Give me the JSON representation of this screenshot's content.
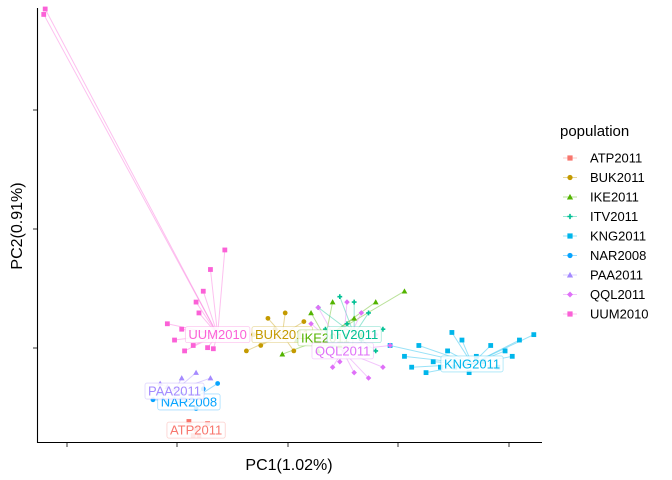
{
  "chart_data": {
    "type": "scatter",
    "title": "",
    "xlabel": "PC1(1.02%)",
    "ylabel": "PC2(0.91%)",
    "xlim": [
      -0.4,
      3.1
    ],
    "ylim": [
      -0.38,
      3.6
    ],
    "grid": false,
    "legend": {
      "title": "population",
      "placement": "right"
    },
    "series": [
      {
        "name": "ATP2011",
        "color": "#F8766D",
        "shape": "square",
        "centroid": [
          0.7,
          -0.28
        ],
        "points": [
          [
            0.68,
            -0.33
          ],
          [
            0.72,
            -0.33
          ],
          [
            0.65,
            -0.2
          ],
          [
            0.78,
            -0.22
          ],
          [
            0.7,
            -0.27
          ]
        ]
      },
      {
        "name": "BUK2011",
        "color": "#C49A00",
        "shape": "circle",
        "centroid": [
          1.3,
          0.6
        ],
        "points": [
          [
            1.05,
            0.45
          ],
          [
            1.1,
            0.6
          ],
          [
            1.2,
            0.75
          ],
          [
            1.32,
            0.8
          ],
          [
            1.45,
            0.72
          ],
          [
            1.5,
            0.55
          ],
          [
            1.38,
            0.45
          ],
          [
            1.25,
            0.65
          ],
          [
            1.15,
            0.5
          ],
          [
            1.42,
            0.62
          ]
        ]
      },
      {
        "name": "IKE2011",
        "color": "#53B400",
        "shape": "triangle",
        "centroid": [
          1.6,
          0.57
        ],
        "points": [
          [
            1.3,
            0.42
          ],
          [
            1.5,
            0.8
          ],
          [
            1.65,
            0.9
          ],
          [
            1.8,
            0.75
          ],
          [
            1.95,
            0.9
          ],
          [
            2.15,
            1.0
          ],
          [
            1.7,
            0.5
          ],
          [
            1.55,
            0.45
          ],
          [
            1.85,
            0.6
          ],
          [
            1.4,
            0.55
          ]
        ]
      },
      {
        "name": "ITV2011",
        "color": "#00C094",
        "shape": "plus",
        "centroid": [
          1.8,
          0.6
        ],
        "points": [
          [
            1.55,
            0.85
          ],
          [
            1.6,
            0.65
          ],
          [
            1.7,
            0.95
          ],
          [
            1.75,
            0.7
          ],
          [
            1.85,
            0.55
          ],
          [
            1.9,
            0.8
          ],
          [
            2.0,
            0.65
          ],
          [
            1.65,
            0.5
          ],
          [
            1.95,
            0.45
          ],
          [
            1.8,
            0.9
          ]
        ]
      },
      {
        "name": "KNG2011",
        "color": "#00B6EB",
        "shape": "square",
        "centroid": [
          2.62,
          0.33
        ],
        "points": [
          [
            2.05,
            0.5
          ],
          [
            2.15,
            0.4
          ],
          [
            2.25,
            0.5
          ],
          [
            2.35,
            0.35
          ],
          [
            2.45,
            0.45
          ],
          [
            2.55,
            0.55
          ],
          [
            2.65,
            0.4
          ],
          [
            2.75,
            0.5
          ],
          [
            2.85,
            0.45
          ],
          [
            2.95,
            0.55
          ],
          [
            3.05,
            0.6
          ],
          [
            2.3,
            0.25
          ],
          [
            2.4,
            0.3
          ],
          [
            2.5,
            0.3
          ],
          [
            2.6,
            0.25
          ],
          [
            2.7,
            0.35
          ],
          [
            2.9,
            0.4
          ],
          [
            2.2,
            0.3
          ],
          [
            2.8,
            0.3
          ],
          [
            2.48,
            0.62
          ]
        ]
      },
      {
        "name": "NAR2008",
        "color": "#06A4FF",
        "shape": "circle",
        "centroid": [
          0.65,
          -0.02
        ],
        "points": [
          [
            0.4,
            0.0
          ],
          [
            0.5,
            -0.03
          ],
          [
            0.6,
            0.05
          ],
          [
            0.75,
            0.1
          ],
          [
            0.85,
            0.15
          ],
          [
            0.55,
            0.02
          ],
          [
            0.7,
            -0.08
          ],
          [
            0.45,
            0.05
          ]
        ]
      },
      {
        "name": "PAA2011",
        "color": "#A58AFF",
        "shape": "triangle",
        "centroid": [
          0.55,
          0.08
        ],
        "points": [
          [
            0.45,
            0.15
          ],
          [
            0.5,
            0.12
          ],
          [
            0.6,
            0.2
          ],
          [
            0.7,
            0.25
          ],
          [
            0.8,
            0.2
          ],
          [
            0.55,
            0.1
          ]
        ]
      },
      {
        "name": "QQL2011",
        "color": "#DF70F8",
        "shape": "diamond",
        "centroid": [
          1.72,
          0.45
        ],
        "points": [
          [
            1.5,
            0.7
          ],
          [
            1.6,
            0.55
          ],
          [
            1.7,
            0.35
          ],
          [
            1.8,
            0.25
          ],
          [
            1.9,
            0.2
          ],
          [
            2.0,
            0.3
          ],
          [
            1.85,
            0.8
          ],
          [
            1.75,
            0.9
          ],
          [
            1.95,
            0.6
          ],
          [
            1.65,
            0.3
          ],
          [
            1.55,
            0.85
          ],
          [
            2.05,
            0.5
          ]
        ]
      },
      {
        "name": "UUM2010",
        "color": "#FB61D7",
        "shape": "square",
        "centroid": [
          0.85,
          0.6
        ],
        "points": [
          [
            -0.35,
            3.6
          ],
          [
            -0.36,
            3.55
          ],
          [
            0.5,
            0.7
          ],
          [
            0.55,
            0.55
          ],
          [
            0.6,
            0.65
          ],
          [
            0.7,
            0.9
          ],
          [
            0.75,
            1.0
          ],
          [
            0.8,
            1.2
          ],
          [
            0.9,
            1.38
          ],
          [
            0.62,
            0.45
          ],
          [
            0.68,
            0.5
          ],
          [
            0.78,
            0.48
          ],
          [
            0.82,
            0.47
          ],
          [
            0.72,
            0.8
          ]
        ]
      }
    ]
  }
}
